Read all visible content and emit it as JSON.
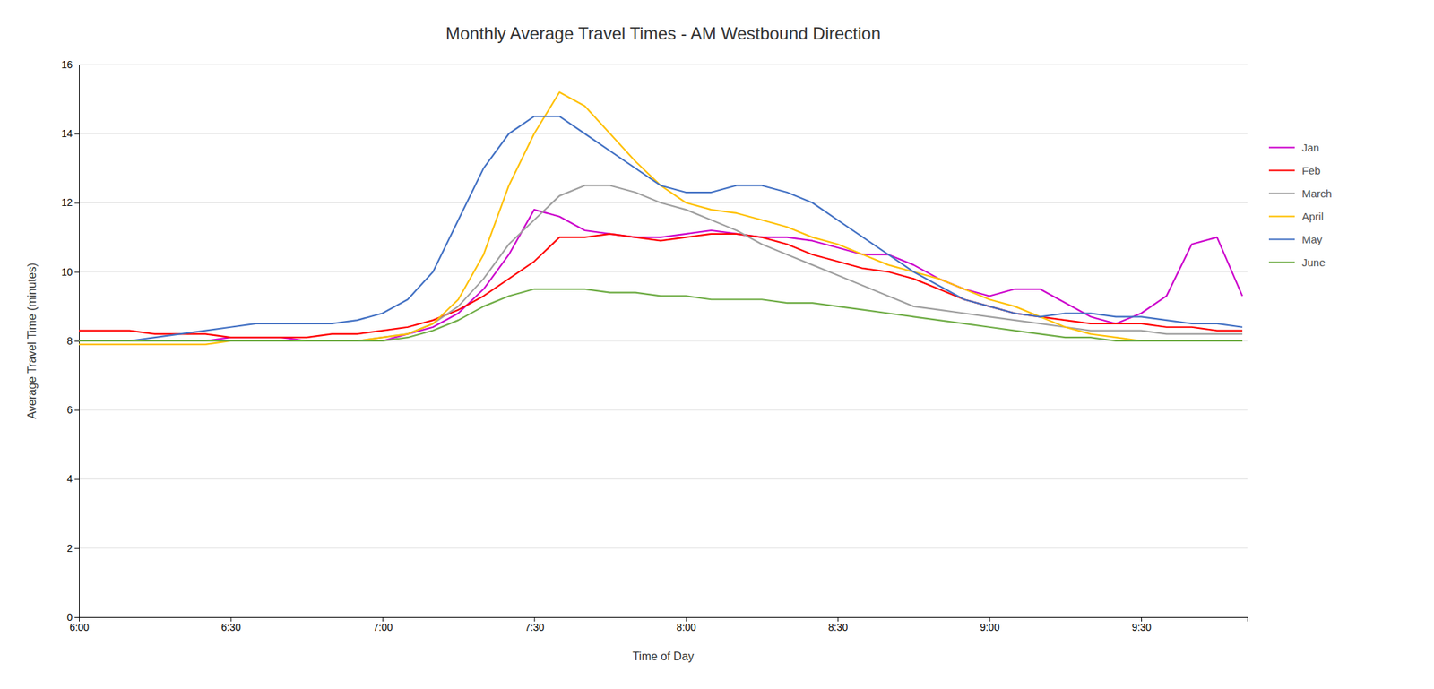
{
  "chart_data": {
    "type": "line",
    "title": "Monthly Average Travel Times - AM Westbound Direction",
    "x_label": "Time of Day",
    "y_label": "Average Travel Time (minutes)",
    "x": [
      360,
      365,
      370,
      375,
      380,
      385,
      390,
      395,
      400,
      405,
      410,
      415,
      420,
      425,
      430,
      435,
      440,
      445,
      450,
      455,
      460,
      465,
      470,
      475,
      480,
      485,
      490,
      495,
      500,
      505,
      510,
      515,
      520,
      525,
      530,
      535,
      540,
      545,
      550,
      555,
      560,
      565,
      570,
      575,
      580,
      585,
      590
    ],
    "xlim": [
      360,
      591
    ],
    "xticks": [
      {
        "value": 360,
        "label": "6:00"
      },
      {
        "value": 390,
        "label": "6:30"
      },
      {
        "value": 420,
        "label": "7:00"
      },
      {
        "value": 450,
        "label": "7:30"
      },
      {
        "value": 480,
        "label": "8:00"
      },
      {
        "value": 510,
        "label": "8:30"
      },
      {
        "value": 540,
        "label": "9:00"
      },
      {
        "value": 570,
        "label": "9:30"
      }
    ],
    "ylim": [
      0,
      16
    ],
    "yticks": [
      0,
      2,
      4,
      6,
      8,
      10,
      12,
      14,
      16
    ],
    "grid": true,
    "legend": "right",
    "series": [
      {
        "name": "Jan",
        "color": "#cc00cc",
        "values": [
          8.0,
          8.0,
          8.0,
          8.0,
          8.0,
          8.0,
          8.1,
          8.1,
          8.1,
          8.0,
          8.0,
          8.0,
          8.0,
          8.2,
          8.4,
          8.8,
          9.5,
          10.5,
          11.8,
          11.6,
          11.2,
          11.1,
          11.0,
          11.0,
          11.1,
          11.2,
          11.1,
          11.0,
          11.0,
          10.9,
          10.7,
          10.5,
          10.5,
          10.2,
          9.8,
          9.5,
          9.3,
          9.5,
          9.5,
          9.1,
          8.7,
          8.5,
          8.8,
          9.3,
          10.8,
          11.0,
          9.3
        ]
      },
      {
        "name": "Feb",
        "color": "#ff0000",
        "values": [
          8.3,
          8.3,
          8.3,
          8.2,
          8.2,
          8.2,
          8.1,
          8.1,
          8.1,
          8.1,
          8.2,
          8.2,
          8.3,
          8.4,
          8.6,
          8.9,
          9.3,
          9.8,
          10.3,
          11.0,
          11.0,
          11.1,
          11.0,
          10.9,
          11.0,
          11.1,
          11.1,
          11.0,
          10.8,
          10.5,
          10.3,
          10.1,
          10.0,
          9.8,
          9.5,
          9.2,
          9.0,
          8.8,
          8.7,
          8.6,
          8.5,
          8.5,
          8.5,
          8.4,
          8.4,
          8.3,
          8.3
        ]
      },
      {
        "name": "March",
        "color": "#a0a0a0",
        "values": [
          8.0,
          8.0,
          8.0,
          8.0,
          8.0,
          8.0,
          8.0,
          8.0,
          8.0,
          8.0,
          8.0,
          8.0,
          8.1,
          8.2,
          8.5,
          9.0,
          9.8,
          10.8,
          11.5,
          12.2,
          12.5,
          12.5,
          12.3,
          12.0,
          11.8,
          11.5,
          11.2,
          10.8,
          10.5,
          10.2,
          9.9,
          9.6,
          9.3,
          9.0,
          8.9,
          8.8,
          8.7,
          8.6,
          8.5,
          8.4,
          8.3,
          8.3,
          8.3,
          8.2,
          8.2,
          8.2,
          8.2
        ]
      },
      {
        "name": "April",
        "color": "#ffc000",
        "values": [
          7.9,
          7.9,
          7.9,
          7.9,
          7.9,
          7.9,
          8.0,
          8.0,
          8.0,
          8.0,
          8.0,
          8.0,
          8.1,
          8.2,
          8.5,
          9.2,
          10.5,
          12.5,
          14.0,
          15.2,
          14.8,
          14.0,
          13.2,
          12.5,
          12.0,
          11.8,
          11.7,
          11.5,
          11.3,
          11.0,
          10.8,
          10.5,
          10.2,
          10.0,
          9.8,
          9.5,
          9.2,
          9.0,
          8.7,
          8.4,
          8.2,
          8.1,
          8.0,
          8.0,
          8.0,
          8.0,
          8.0
        ]
      },
      {
        "name": "May",
        "color": "#4472c4",
        "values": [
          8.0,
          8.0,
          8.0,
          8.1,
          8.2,
          8.3,
          8.4,
          8.5,
          8.5,
          8.5,
          8.5,
          8.6,
          8.8,
          9.2,
          10.0,
          11.5,
          13.0,
          14.0,
          14.5,
          14.5,
          14.0,
          13.5,
          13.0,
          12.5,
          12.3,
          12.3,
          12.5,
          12.5,
          12.3,
          12.0,
          11.5,
          11.0,
          10.5,
          10.0,
          9.6,
          9.2,
          9.0,
          8.8,
          8.7,
          8.8,
          8.8,
          8.7,
          8.7,
          8.6,
          8.5,
          8.5,
          8.4
        ]
      },
      {
        "name": "June",
        "color": "#70ad47",
        "values": [
          8.0,
          8.0,
          8.0,
          8.0,
          8.0,
          8.0,
          8.0,
          8.0,
          8.0,
          8.0,
          8.0,
          8.0,
          8.0,
          8.1,
          8.3,
          8.6,
          9.0,
          9.3,
          9.5,
          9.5,
          9.5,
          9.4,
          9.4,
          9.3,
          9.3,
          9.2,
          9.2,
          9.2,
          9.1,
          9.1,
          9.0,
          8.9,
          8.8,
          8.7,
          8.6,
          8.5,
          8.4,
          8.3,
          8.2,
          8.1,
          8.1,
          8.0,
          8.0,
          8.0,
          8.0,
          8.0,
          8.0
        ]
      }
    ]
  }
}
